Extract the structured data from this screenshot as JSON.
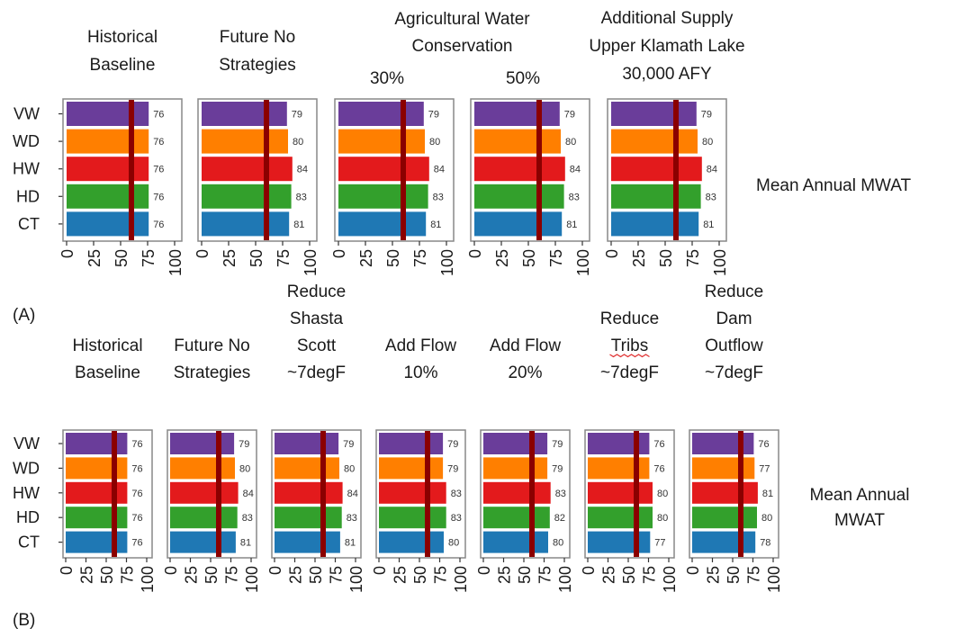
{
  "colors": {
    "VW": "#6a3d9a",
    "WD": "#ff7f00",
    "HW": "#e31a1c",
    "HD": "#33a02c",
    "CT": "#1f78b4",
    "threshold": "#8b0000",
    "frame": "#888888"
  },
  "chart_data": [
    {
      "panel": "(A)",
      "type": "bar",
      "orientation": "horizontal",
      "metric_label": [
        "Mean Annual MWAT"
      ],
      "categories": [
        "VW",
        "WD",
        "HW",
        "HD",
        "CT"
      ],
      "xlim": [
        0,
        100
      ],
      "x_ticks": [
        "0",
        "25",
        "50",
        "75",
        "100"
      ],
      "threshold_value": 60,
      "facets": [
        {
          "title": [
            "Historical",
            "Baseline"
          ],
          "values": [
            76,
            76,
            76,
            76,
            76
          ]
        },
        {
          "title": [
            "Future No",
            "Strategies"
          ],
          "values": [
            79,
            80,
            84,
            83,
            81
          ]
        },
        {
          "title": [],
          "values": [
            79,
            80,
            84,
            83,
            81
          ]
        },
        {
          "title": [],
          "values": [
            79,
            80,
            84,
            83,
            81
          ]
        },
        {
          "title": [
            "Additional Supply",
            "Upper Klamath Lake",
            "30,000 AFY"
          ],
          "values": [
            79,
            80,
            84,
            83,
            81
          ]
        }
      ],
      "group_title": [
        "Agricultural Water",
        "Conservation"
      ],
      "group_subtitles": [
        "30%",
        "50%"
      ]
    },
    {
      "panel": "(B)",
      "type": "bar",
      "orientation": "horizontal",
      "metric_label": [
        "Mean Annual",
        "MWAT"
      ],
      "categories": [
        "VW",
        "WD",
        "HW",
        "HD",
        "CT"
      ],
      "xlim": [
        0,
        100
      ],
      "x_ticks": [
        "0",
        "25",
        "50",
        "75",
        "100"
      ],
      "threshold_value": 60,
      "facets": [
        {
          "title": [
            "Historical",
            "Baseline"
          ],
          "values": [
            76,
            76,
            76,
            76,
            76
          ]
        },
        {
          "title": [
            "Future No",
            "Strategies"
          ],
          "values": [
            79,
            80,
            84,
            83,
            81
          ]
        },
        {
          "title": [
            "Reduce",
            "Shasta",
            "Scott",
            "~7degF"
          ],
          "values": [
            79,
            80,
            84,
            83,
            81
          ]
        },
        {
          "title": [
            "Add Flow",
            "10%"
          ],
          "values": [
            79,
            79,
            83,
            83,
            80
          ]
        },
        {
          "title": [
            "Add Flow",
            "20%"
          ],
          "values": [
            79,
            79,
            83,
            82,
            80
          ]
        },
        {
          "title": [
            "Reduce",
            "Tribs",
            "~7degF"
          ],
          "values": [
            76,
            76,
            80,
            80,
            77
          ]
        },
        {
          "title": [
            "Reduce",
            "Dam",
            "Outflow",
            "~7degF"
          ],
          "values": [
            76,
            77,
            81,
            80,
            78
          ]
        }
      ]
    }
  ]
}
